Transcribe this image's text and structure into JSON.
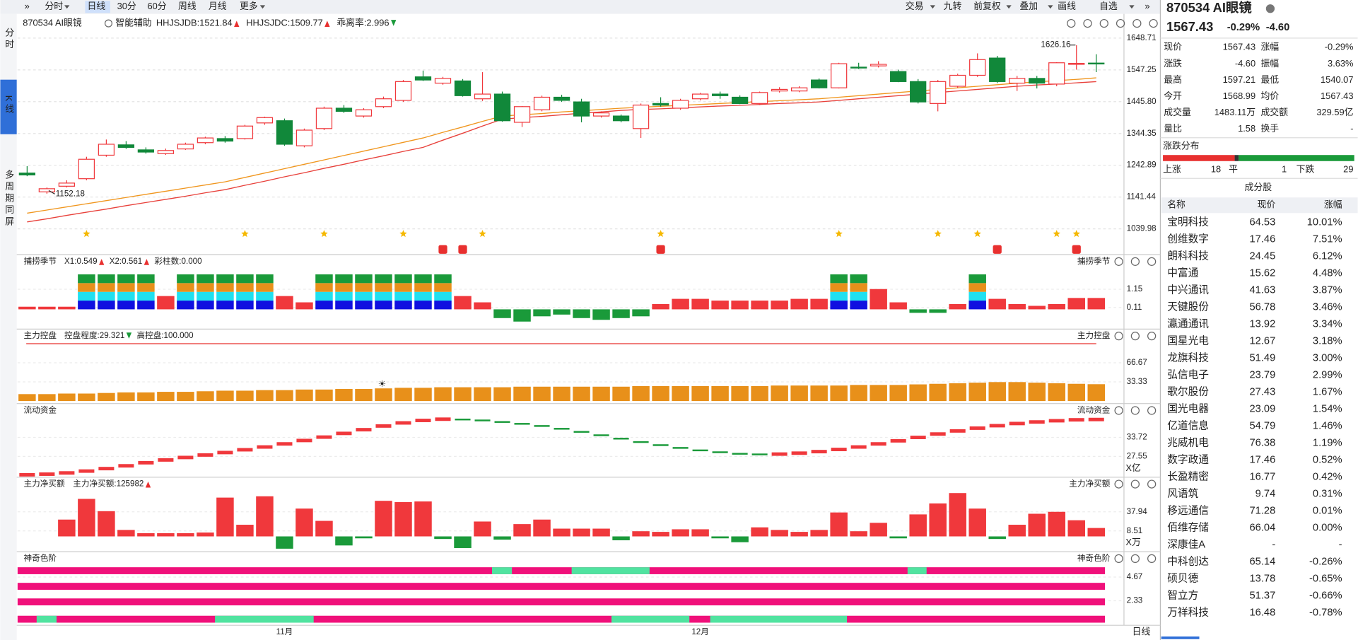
{
  "toolbar": {
    "left": [
      "分时",
      "日线",
      "30分",
      "60分",
      "周线",
      "月线",
      "更多"
    ],
    "right": [
      "交易",
      "九转",
      "前复权",
      "叠加",
      "画线",
      "自选"
    ]
  },
  "side_tabs": [
    "分时",
    "K线",
    "多周期同屏"
  ],
  "chart_data": {
    "type": "candlestick",
    "title": "870534 AI眼镜",
    "assist": "智能辅助",
    "indicator": "乖离率:2.996",
    "categories": [
      null,
      null,
      null,
      null,
      null,
      null,
      null,
      null,
      null,
      null,
      null,
      null,
      null,
      "11月",
      null,
      null,
      null,
      null,
      null,
      null,
      null,
      null,
      null,
      null,
      null,
      null,
      null,
      null,
      null,
      null,
      null,
      null,
      null,
      null,
      "12月",
      null,
      null,
      null,
      null,
      null,
      null,
      null,
      null,
      null,
      null,
      null,
      null,
      null,
      null,
      null,
      null,
      null,
      null,
      null,
      null
    ],
    "candles": [
      [
        1218,
        1240,
        1208,
        1212
      ],
      [
        1158,
        1172,
        1152.18,
        1168
      ],
      [
        1176,
        1195,
        1172,
        1186
      ],
      [
        1200,
        1270,
        1195,
        1262
      ],
      [
        1275,
        1325,
        1270,
        1310
      ],
      [
        1308,
        1320,
        1295,
        1300
      ],
      [
        1292,
        1300,
        1280,
        1285
      ],
      [
        1280,
        1296,
        1276,
        1290
      ],
      [
        1295,
        1315,
        1292,
        1310
      ],
      [
        1315,
        1334,
        1310,
        1330
      ],
      [
        1328,
        1336,
        1315,
        1320
      ],
      [
        1328,
        1372,
        1325,
        1368
      ],
      [
        1378,
        1398,
        1372,
        1395
      ],
      [
        1385,
        1392,
        1305,
        1310
      ],
      [
        1305,
        1360,
        1300,
        1355
      ],
      [
        1360,
        1430,
        1355,
        1425
      ],
      [
        1425,
        1435,
        1410,
        1415
      ],
      [
        1400,
        1425,
        1395,
        1420
      ],
      [
        1430,
        1462,
        1425,
        1455
      ],
      [
        1450,
        1515,
        1445,
        1510
      ],
      [
        1525,
        1545,
        1512,
        1515
      ],
      [
        1505,
        1525,
        1500,
        1520
      ],
      [
        1512,
        1518,
        1462,
        1465
      ],
      [
        1455,
        1540,
        1448,
        1470
      ],
      [
        1470,
        1478,
        1382,
        1385
      ],
      [
        1380,
        1432,
        1365,
        1430
      ],
      [
        1420,
        1465,
        1415,
        1460
      ],
      [
        1460,
        1468,
        1445,
        1450
      ],
      [
        1445,
        1455,
        1380,
        1400
      ],
      [
        1400,
        1415,
        1395,
        1410
      ],
      [
        1400,
        1405,
        1380,
        1385
      ],
      [
        1360,
        1440,
        1330,
        1435
      ],
      [
        1440,
        1460,
        1430,
        1435
      ],
      [
        1425,
        1455,
        1420,
        1450
      ],
      [
        1455,
        1474,
        1450,
        1470
      ],
      [
        1470,
        1478,
        1455,
        1465
      ],
      [
        1460,
        1466,
        1438,
        1440
      ],
      [
        1440,
        1478,
        1435,
        1475
      ],
      [
        1480,
        1492,
        1475,
        1485
      ],
      [
        1480,
        1495,
        1476,
        1490
      ],
      [
        1515,
        1520,
        1488,
        1490
      ],
      [
        1490,
        1570,
        1488,
        1567
      ],
      [
        1556,
        1570,
        1550,
        1555
      ],
      [
        1560,
        1575,
        1555,
        1565
      ],
      [
        1542,
        1548,
        1508,
        1510
      ],
      [
        1510,
        1518,
        1440,
        1445
      ],
      [
        1440,
        1515,
        1415,
        1510
      ],
      [
        1495,
        1535,
        1490,
        1530
      ],
      [
        1530,
        1600,
        1525,
        1580
      ],
      [
        1585,
        1592,
        1505,
        1510
      ],
      [
        1505,
        1528,
        1480,
        1520
      ],
      [
        1520,
        1528,
        1488,
        1505
      ],
      [
        1502,
        1572,
        1495,
        1570
      ],
      [
        1565,
        1626.16,
        1548,
        1568
      ],
      [
        1568.99,
        1597.21,
        1540.07,
        1567.43
      ]
    ],
    "up_color": "#f0383c",
    "down_color": "#11883a",
    "series": [
      {
        "name": "HHJSJDB:1521.84",
        "color": "#f0961e",
        "values": [
          1090,
          1100,
          1110,
          1120,
          1130,
          1140,
          1150,
          1160,
          1170,
          1180,
          1190,
          1204,
          1218,
          1232,
          1246,
          1260,
          1274,
          1288,
          1302,
          1316,
          1330,
          1348,
          1365,
          1383,
          1400,
          1404,
          1408,
          1413,
          1417,
          1421,
          1425,
          1428,
          1431,
          1434,
          1437,
          1440,
          1443,
          1446,
          1449,
          1452,
          1455,
          1460,
          1465,
          1470,
          1475,
          1480,
          1485,
          1490,
          1495,
          1500,
          1505,
          1509,
          1513,
          1517,
          1521.84
        ]
      },
      {
        "name": "HHJSJDC:1509.77",
        "color": "#e8413b",
        "values": [
          1062,
          1072,
          1083,
          1093,
          1103,
          1114,
          1124,
          1134,
          1144,
          1155,
          1165,
          1179,
          1192,
          1206,
          1219,
          1233,
          1246,
          1260,
          1273,
          1287,
          1300,
          1323,
          1345,
          1368,
          1390,
          1395,
          1399,
          1404,
          1409,
          1413,
          1418,
          1421,
          1423,
          1426,
          1429,
          1432,
          1434,
          1437,
          1440,
          1442,
          1445,
          1450,
          1455,
          1460,
          1465,
          1470,
          1475,
          1480,
          1485,
          1490,
          1495,
          1499,
          1502,
          1506,
          1509.77
        ]
      }
    ],
    "ylim": [
      957.7,
      1726.1
    ],
    "yticks": [
      1648.71,
      1547.25,
      {
        "value": 1445.8,
        "label": "1445.80"
      },
      1344.35,
      1242.89,
      1141.44,
      1039.98
    ],
    "grid": true,
    "x_period": "日线"
  },
  "panels": [
    {
      "type": "stack_bar",
      "title": "捕捞季节",
      "legend": [
        {
          "text": "X1:0.549",
          "color": "#f0961e"
        },
        {
          "text": "X2:0.561",
          "color": "#d020d0"
        },
        {
          "text": "彩柱数:0.000",
          "color": "#1a9a3a"
        }
      ],
      "values": [
        0.15,
        0.15,
        0.15,
        2,
        2,
        2,
        2,
        0.76,
        2,
        2,
        2,
        2,
        2,
        0.76,
        0.4,
        2,
        2,
        2,
        2,
        2,
        2,
        2,
        0.76,
        0.4,
        -0.5,
        -0.7,
        -0.4,
        -0.3,
        -0.5,
        -0.6,
        -0.5,
        -0.4,
        0.3,
        0.6,
        0.6,
        0.5,
        0.5,
        0.5,
        0.5,
        0.6,
        0.6,
        2,
        2,
        1.16,
        0.4,
        -0.2,
        -0.2,
        0.3,
        2,
        0.6,
        0.3,
        0.2,
        0.3,
        0.65,
        0.65
      ],
      "ylim": [
        -1.13,
        3.08
      ],
      "yticks": [
        1.15,
        0.11
      ]
    },
    {
      "type": "bar",
      "title": "主力控盘",
      "legend": [
        {
          "text": "控盘程度:29.321",
          "color": "#f0961e"
        },
        {
          "text": "高控盘:100.000",
          "color": "#e8302f",
          "value": 100
        }
      ],
      "color": "#e8901a",
      "values": [
        12,
        12,
        13,
        13,
        14,
        15,
        15,
        16,
        16,
        17,
        18,
        18,
        19,
        19,
        20,
        20,
        21,
        21,
        22,
        23,
        23,
        24,
        24,
        24,
        24,
        25,
        25,
        25,
        25,
        25,
        25,
        26,
        26,
        26,
        26,
        26,
        26,
        26,
        27,
        27,
        27,
        27,
        28,
        28,
        28,
        29,
        30,
        31,
        32,
        33,
        33,
        32,
        31,
        30,
        29.321
      ],
      "ylim": [
        -4.5,
        124
      ],
      "yticks": [
        66.67,
        33.33
      ]
    },
    {
      "type": "dash",
      "title": "流动资金",
      "legend": [],
      "unit": "X亿",
      "values": [
        21.6,
        21.8,
        22.2,
        22.8,
        23.6,
        24.5,
        25.5,
        26.4,
        27.2,
        28.0,
        28.8,
        29.7,
        30.6,
        31.6,
        32.7,
        33.8,
        35.0,
        36.2,
        37.4,
        38.4,
        39.2,
        39.6,
        39.5,
        39.2,
        38.7,
        38.1,
        37.4,
        36.5,
        35.5,
        34.4,
        33.3,
        32.2,
        31.2,
        30.3,
        29.5,
        28.9,
        28.4,
        28.2,
        28.3,
        28.6,
        29.1,
        29.8,
        30.6,
        31.6,
        32.6,
        33.7,
        34.8,
        35.8,
        36.7,
        37.5,
        38.2,
        38.7,
        39.1,
        39.4,
        39.5
      ],
      "ylim": [
        20.82,
        44.38
      ],
      "yticks": [
        33.72,
        27.55
      ]
    },
    {
      "type": "bar",
      "title": "主力净买额",
      "legend": [
        {
          "text": "主力净买额:125982",
          "color": "#e8302f"
        }
      ],
      "unit": "X万",
      "values": [
        0,
        0,
        26,
        58,
        39,
        10,
        5,
        5,
        5,
        6,
        60,
        18,
        62,
        -19,
        43,
        24,
        -14,
        -3,
        55,
        53,
        54,
        -4,
        -18,
        23,
        -5,
        19,
        26,
        12,
        12,
        12,
        -6,
        8,
        7,
        11,
        11,
        -3,
        -9,
        14,
        10,
        7,
        10,
        37,
        8,
        21,
        -3,
        34,
        51,
        67,
        43,
        -4,
        18,
        35,
        38,
        25,
        13
      ],
      "ylim": [
        -23.6,
        90.2
      ],
      "yticks": [
        37.94,
        8.51
      ]
    },
    {
      "type": "strips",
      "title": "神奇色阶",
      "legend": [],
      "ylim": [
        -0.1,
        7.1
      ],
      "yticks": [
        4.67,
        2.33
      ]
    }
  ],
  "quote": {
    "title": "870534 AI眼镜",
    "price": "1567.43",
    "change_pct": "-0.29%",
    "change": "-4.60",
    "stats": [
      [
        "现价",
        "1567.43",
        "涨幅",
        "-0.29%"
      ],
      [
        "涨跌",
        "-4.60",
        "振幅",
        "3.63%"
      ],
      [
        "最高",
        "1597.21",
        "最低",
        "1540.07"
      ],
      [
        "今开",
        "1568.99",
        "均价",
        "1567.43"
      ],
      [
        "成交量",
        "1483.11万",
        "成交额",
        "329.59亿"
      ],
      [
        "量比",
        "1.58",
        "换手",
        "-"
      ]
    ],
    "distribution": {
      "title": "涨跌分布",
      "up_label": "上涨",
      "up": 18,
      "flat_label": "平",
      "flat": 1,
      "down_label": "下跌",
      "down": 29
    },
    "constituents": {
      "title": "成分股",
      "header": [
        "名称",
        "现价",
        "涨幅"
      ],
      "rows": [
        [
          "宝明科技",
          "64.53",
          "10.01%"
        ],
        [
          "创维数字",
          "17.46",
          "7.51%"
        ],
        [
          "朗科科技",
          "24.45",
          "6.12%"
        ],
        [
          "中富通",
          "15.62",
          "4.48%"
        ],
        [
          "中兴通讯",
          "41.63",
          "3.87%"
        ],
        [
          "天键股份",
          "56.78",
          "3.46%"
        ],
        [
          "瀛通通讯",
          "13.92",
          "3.34%"
        ],
        [
          "国星光电",
          "12.67",
          "3.18%"
        ],
        [
          "龙旗科技",
          "51.49",
          "3.00%"
        ],
        [
          "弘信电子",
          "23.79",
          "2.99%"
        ],
        [
          "歌尔股份",
          "27.43",
          "1.67%"
        ],
        [
          "国光电器",
          "23.09",
          "1.54%"
        ],
        [
          "亿道信息",
          "54.79",
          "1.46%"
        ],
        [
          "兆威机电",
          "76.38",
          "1.19%"
        ],
        [
          "数字政通",
          "17.46",
          "0.52%"
        ],
        [
          "长盈精密",
          "16.77",
          "0.42%"
        ],
        [
          "风语筑",
          "9.74",
          "0.31%"
        ],
        [
          "移远通信",
          "71.28",
          "0.01%"
        ],
        [
          "佰维存储",
          "66.04",
          "0.00%"
        ],
        [
          "深康佳A",
          "-",
          "-"
        ],
        [
          "中科创达",
          "65.14",
          "-0.26%"
        ],
        [
          "硕贝德",
          "13.78",
          "-0.65%"
        ],
        [
          "智立方",
          "51.37",
          "-0.66%"
        ],
        [
          "万祥科技",
          "16.48",
          "-0.78%"
        ]
      ]
    }
  }
}
